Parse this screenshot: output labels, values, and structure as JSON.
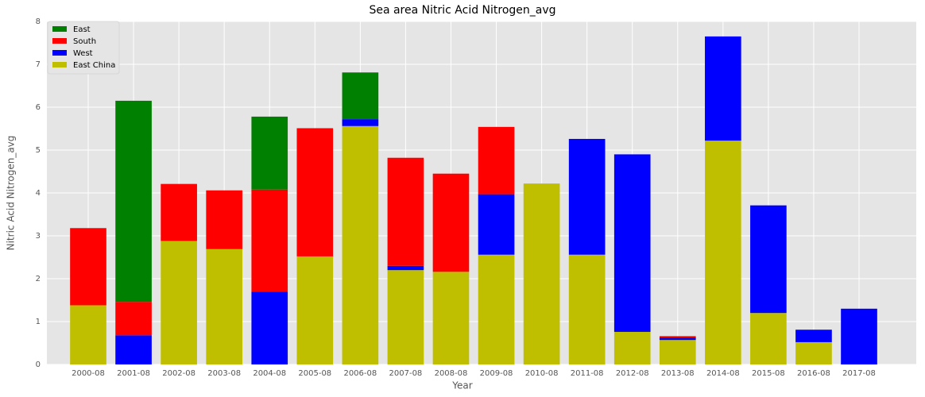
{
  "chart_data": {
    "type": "stacked-bar",
    "title": "Sea area Nitric Acid Nitrogen_avg",
    "x_label": "Year",
    "y_label": "Nitric Acid Nitrogen_avg",
    "categories": [
      "2000-08",
      "2001-08",
      "2002-08",
      "2003-08",
      "2004-08",
      "2005-08",
      "2006-08",
      "2007-08",
      "2008-08",
      "2009-08",
      "2010-08",
      "2011-08",
      "2012-08",
      "2013-08",
      "2014-08",
      "2015-08",
      "2016-08",
      "2017-08"
    ],
    "series": [
      {
        "name": "East",
        "color": "#008000",
        "values": [
          0,
          4.69,
          0,
          0,
          1.7,
          0,
          1.09,
          0,
          0,
          0,
          0,
          0,
          0,
          0,
          0,
          0,
          0,
          0
        ]
      },
      {
        "name": "South",
        "color": "#ff0000",
        "values": [
          1.8,
          0.78,
          1.33,
          1.37,
          2.38,
          2.99,
          0,
          2.52,
          2.29,
          1.57,
          0,
          0,
          0,
          0.03,
          0,
          0,
          0,
          0
        ]
      },
      {
        "name": "West",
        "color": "#0000ff",
        "values": [
          0,
          0.68,
          0,
          0,
          1.7,
          0,
          0.16,
          0.1,
          0,
          1.41,
          0,
          2.7,
          4.14,
          0.06,
          2.43,
          2.51,
          0.29,
          1.3
        ]
      },
      {
        "name": "East China",
        "color": "#bfbf00",
        "values": [
          1.38,
          0,
          2.88,
          2.69,
          0,
          2.52,
          5.56,
          2.2,
          2.16,
          2.56,
          4.22,
          2.56,
          0.76,
          0.57,
          5.22,
          1.2,
          0.52,
          0
        ]
      }
    ],
    "ylim": [
      0,
      8
    ],
    "yticks": [
      0,
      1,
      2,
      3,
      4,
      5,
      6,
      7,
      8
    ],
    "grid": true,
    "legend": "upper-left"
  }
}
